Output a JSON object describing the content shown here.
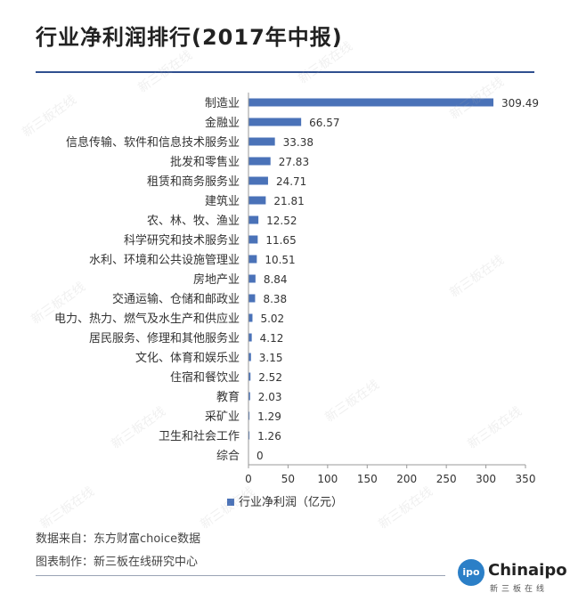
{
  "title": "行业净利润排行(2017年中报)",
  "chart_data": {
    "type": "bar",
    "orientation": "horizontal",
    "categories": [
      "制造业",
      "金融业",
      "信息传输、软件和信息技术服务业",
      "批发和零售业",
      "租赁和商务服务业",
      "建筑业",
      "农、林、牧、渔业",
      "科学研究和技术服务业",
      "水利、环境和公共设施管理业",
      "房地产业",
      "交通运输、仓储和邮政业",
      "电力、热力、燃气及水生产和供应业",
      "居民服务、修理和其他服务业",
      "文化、体育和娱乐业",
      "住宿和餐饮业",
      "教育",
      "采矿业",
      "卫生和社会工作",
      "综合"
    ],
    "series": [
      {
        "name": "行业净利润（亿元）",
        "values": [
          309.49,
          66.57,
          33.38,
          27.83,
          24.71,
          21.81,
          12.52,
          11.65,
          10.51,
          8.84,
          8.38,
          5.02,
          4.12,
          3.15,
          2.52,
          2.03,
          1.29,
          1.26,
          0
        ],
        "value_labels": [
          "309.49",
          "66.57",
          "33.38",
          "27.83",
          "24.71",
          "21.81",
          "12.52",
          "11.65",
          "10.51",
          "8.84",
          "8.38",
          "5.02",
          "4.12",
          "3.15",
          "2.52",
          "2.03",
          "1.29",
          "1.26",
          "0"
        ]
      }
    ],
    "xlim": [
      0,
      350
    ],
    "xticks": [
      "0",
      "50",
      "100",
      "150",
      "200",
      "250",
      "300",
      "350"
    ],
    "grid": false,
    "legend_position": "bottom",
    "bar_color": "#4a72b8"
  },
  "notes": {
    "source": "数据来自：东方财富choice数据",
    "maker": "图表制作：新三板在线研究中心"
  },
  "logo": {
    "badge": "Chinaipo",
    "word": "Chinaipo",
    "sub": "新三板在线"
  },
  "watermark_text": "新三板在线"
}
